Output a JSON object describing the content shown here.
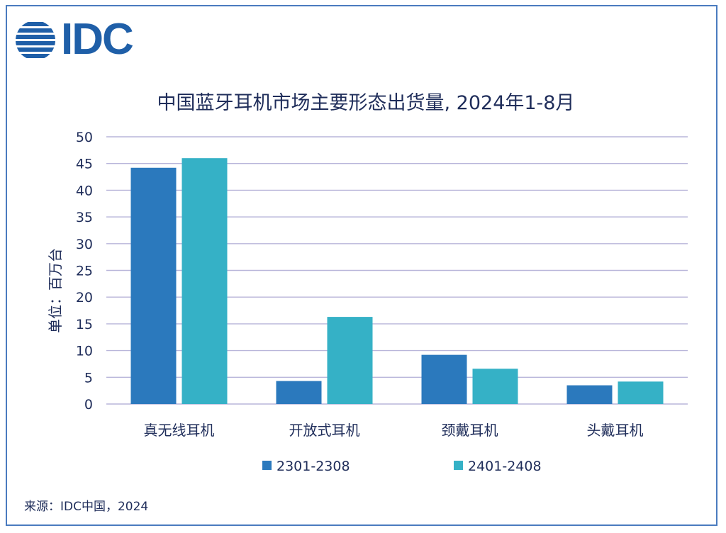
{
  "logo": {
    "text": "IDC"
  },
  "source": "来源：IDC中国，2024",
  "chart_data": {
    "type": "bar",
    "title": "中国蓝牙耳机市场主要形态出货量, 2024年1-8月",
    "ylabel": "单位：百万台",
    "xlabel": "",
    "ylim": [
      0,
      50
    ],
    "yticks": [
      0,
      5,
      10,
      15,
      20,
      25,
      30,
      35,
      40,
      45,
      50
    ],
    "grid": true,
    "legend_position": "bottom",
    "categories": [
      "真无线耳机",
      "开放式耳机",
      "颈戴耳机",
      "头戴耳机"
    ],
    "series": [
      {
        "name": "2301-2308",
        "color": "#2b79bd",
        "values": [
          44.2,
          4.3,
          9.2,
          3.5
        ]
      },
      {
        "name": "2401-2408",
        "color": "#35b1c6",
        "values": [
          46.0,
          16.3,
          6.6,
          4.2
        ]
      }
    ],
    "colors": {
      "gridline": "#b9b6da",
      "text": "#1f2d5a",
      "title": "#1f2d5a"
    }
  }
}
